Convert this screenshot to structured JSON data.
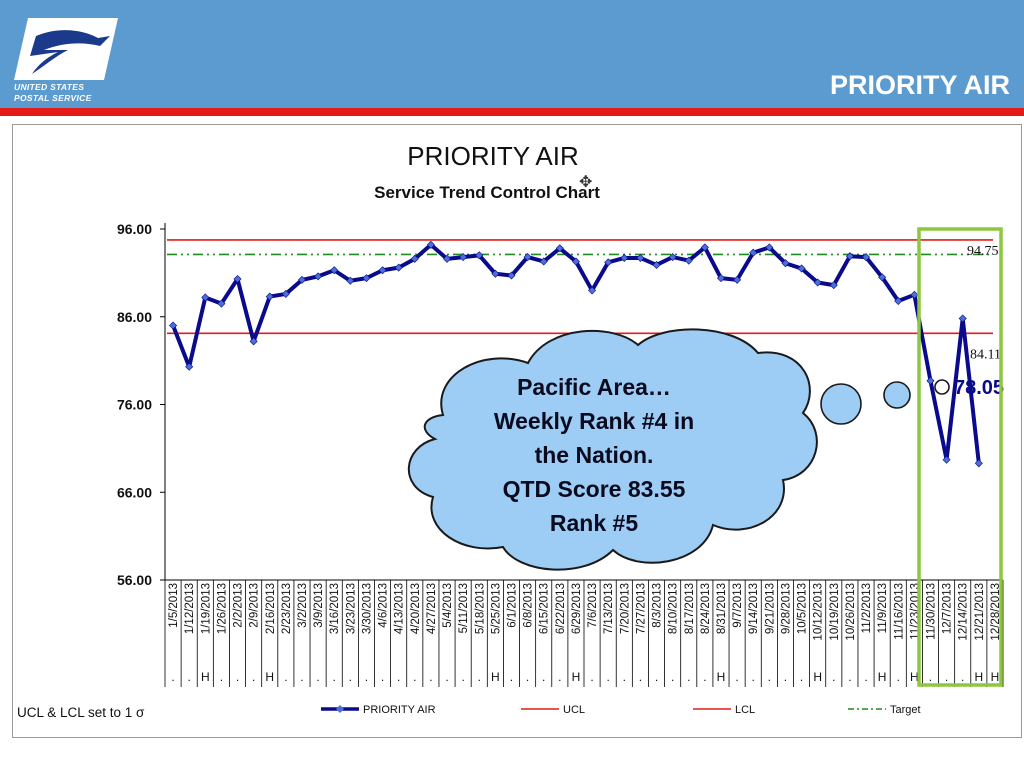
{
  "header": {
    "slide_title": "PRIORITY AIR",
    "logo_lines": [
      "UNITED STATES",
      "POSTAL SERVICE"
    ]
  },
  "colors": {
    "header_bg": "#5b9bd0",
    "stripe": "#e41b17",
    "series": "#0a0a8c",
    "marker": "#4a6fd6",
    "ucl": "#e41b17",
    "lcl": "#e41b17",
    "target": "#1e8c1e",
    "highlight_box": "#8dc63f",
    "bubble_fill": "#9dccf5"
  },
  "chart_data": {
    "type": "line",
    "title": "PRIORITY AIR",
    "subtitle": "Service Trend Control Chart",
    "ylim": [
      56,
      96
    ],
    "yticks": [
      "96.00",
      "86.00",
      "76.00",
      "66.00",
      "56.00"
    ],
    "ytick_values": [
      96,
      86,
      76,
      66,
      56
    ],
    "categories": [
      "1/5/2013",
      "1/12/2013",
      "1/19/2013",
      "1/26/2013",
      "2/2/2013",
      "2/9/2013",
      "2/16/2013",
      "2/23/2013",
      "3/2/2013",
      "3/9/2013",
      "3/16/2013",
      "3/23/2013",
      "3/30/2013",
      "4/6/2013",
      "4/13/2013",
      "4/20/2013",
      "4/27/2013",
      "5/4/2013",
      "5/11/2013",
      "5/18/2013",
      "5/25/2013",
      "6/1/2013",
      "6/8/2013",
      "6/15/2013",
      "6/22/2013",
      "6/29/2013",
      "7/6/2013",
      "7/13/2013",
      "7/20/2013",
      "7/27/2013",
      "8/3/2013",
      "8/10/2013",
      "8/17/2013",
      "8/24/2013",
      "8/31/2013",
      "9/7/2013",
      "9/14/2013",
      "9/21/2013",
      "9/28/2013",
      "10/5/2013",
      "10/12/2013",
      "10/19/2013",
      "10/26/2013",
      "11/2/2013",
      "11/9/2013",
      "11/16/2013",
      "11/23/2013",
      "11/30/2013",
      "12/7/2013",
      "12/14/2013",
      "12/21/2013",
      "12/28/2013"
    ],
    "flags": [
      ".",
      ".",
      "H",
      ".",
      ".",
      ".",
      "H",
      ".",
      ".",
      ".",
      ".",
      ".",
      ".",
      ".",
      ".",
      ".",
      ".",
      ".",
      ".",
      ".",
      "H",
      ".",
      ".",
      ".",
      ".",
      "H",
      ".",
      ".",
      ".",
      ".",
      ".",
      ".",
      ".",
      ".",
      "H",
      ".",
      ".",
      ".",
      ".",
      ".",
      "H",
      ".",
      ".",
      ".",
      "H",
      ".",
      "H",
      ".",
      ".",
      ".",
      "H",
      "H"
    ],
    "series": [
      {
        "name": "PRIORITY AIR",
        "values": [
          85.0,
          80.3,
          88.2,
          87.5,
          90.3,
          83.2,
          88.3,
          88.6,
          90.2,
          90.6,
          91.3,
          90.1,
          90.4,
          91.3,
          91.6,
          92.6,
          94.2,
          92.6,
          92.8,
          93.0,
          90.9,
          90.7,
          92.8,
          92.3,
          93.8,
          92.3,
          89.0,
          92.2,
          92.7,
          92.7,
          91.9,
          92.8,
          92.4,
          93.9,
          90.4,
          90.2,
          93.3,
          93.9,
          92.1,
          91.5,
          89.9,
          89.6,
          92.9,
          92.8,
          90.5,
          87.8,
          88.5,
          78.7,
          69.7,
          85.8,
          69.3,
          null
        ],
        "projection": [
          78.05
        ]
      },
      {
        "name": "UCL",
        "value": 94.75
      },
      {
        "name": "LCL",
        "value": 84.11
      },
      {
        "name": "Target",
        "value": 93.1
      }
    ],
    "ucl_label": "94.75",
    "lcl_label": "84.11",
    "current_label": "78.05",
    "legend": [
      "PRIORITY AIR",
      "UCL",
      "LCL",
      "Target"
    ],
    "legend_position": "bottom",
    "footnote": "UCL & LCL set to 1 σ",
    "annotation": [
      "Pacific Area…",
      "Weekly Rank #4 in",
      "the Nation.",
      "QTD Score 83.55",
      "Rank #5"
    ],
    "grid": false
  }
}
